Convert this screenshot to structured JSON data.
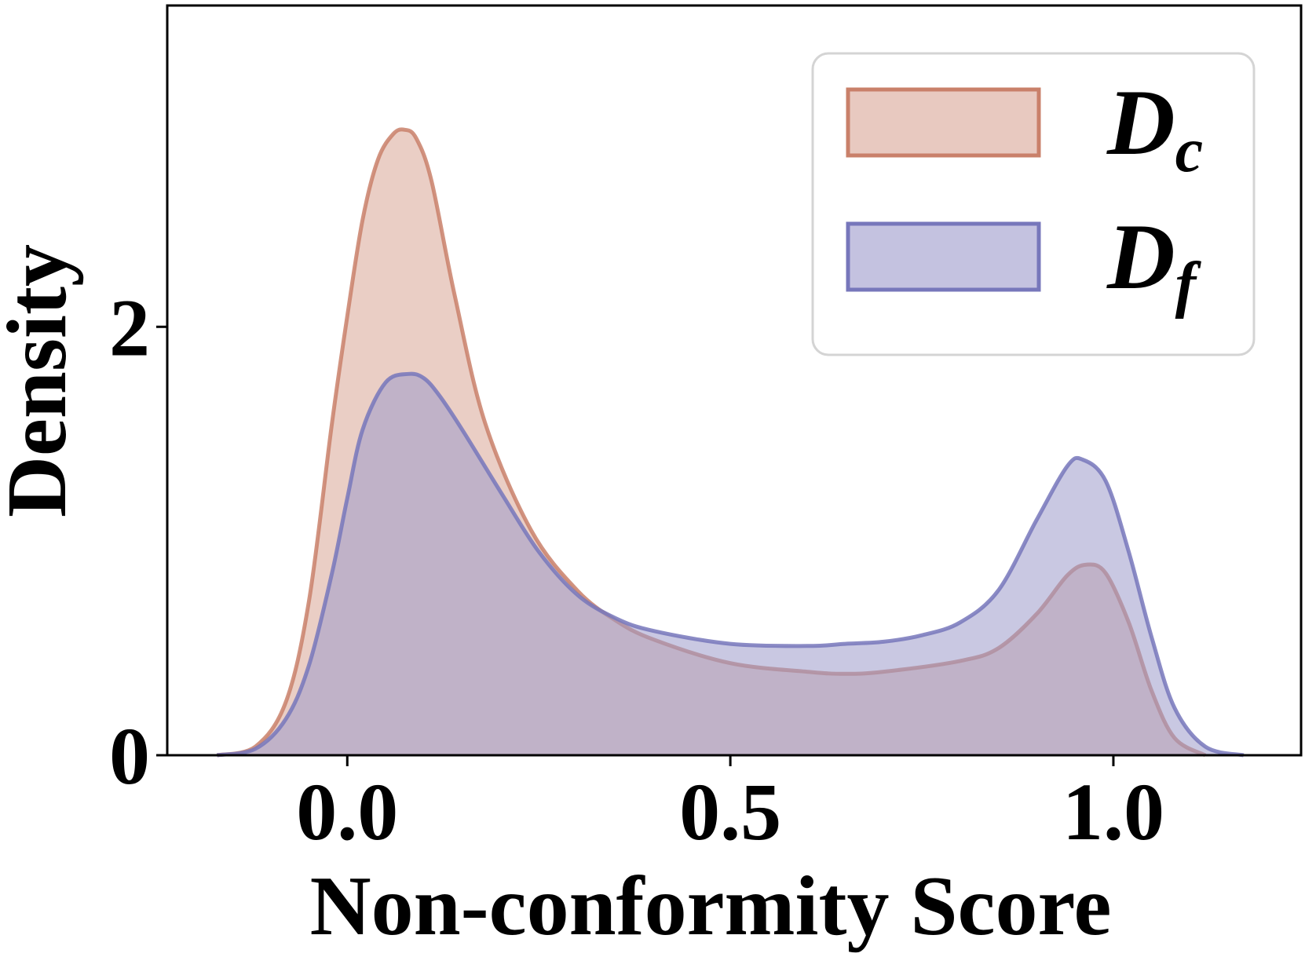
{
  "chart_data": {
    "type": "area",
    "xlabel": "Non-conformity Score",
    "ylabel": "Density",
    "xlim": [
      -0.235,
      1.245
    ],
    "ylim": [
      0,
      3.5
    ],
    "x_ticks": [
      {
        "value": 0.0,
        "label": "0.0"
      },
      {
        "value": 0.5,
        "label": "0.5"
      },
      {
        "value": 1.0,
        "label": "1.0"
      }
    ],
    "y_ticks": [
      {
        "value": 0,
        "label": "0"
      },
      {
        "value": 2,
        "label": "2"
      }
    ],
    "grid": false,
    "legend_position": "top-right",
    "series": [
      {
        "name": "D_c",
        "legend_main": "D",
        "legend_sub": "c",
        "color": "#c9806a",
        "fill": "#d8a596",
        "x": [
          -0.17,
          -0.12,
          -0.08,
          -0.05,
          -0.02,
          0.0,
          0.02,
          0.04,
          0.06,
          0.075,
          0.09,
          0.11,
          0.14,
          0.18,
          0.24,
          0.3,
          0.35,
          0.4,
          0.5,
          0.6,
          0.65,
          0.7,
          0.8,
          0.85,
          0.9,
          0.94,
          0.965,
          0.99,
          1.02,
          1.05,
          1.08,
          1.12
        ],
        "y": [
          0.0,
          0.04,
          0.25,
          0.72,
          1.55,
          2.05,
          2.5,
          2.78,
          2.9,
          2.92,
          2.88,
          2.68,
          2.15,
          1.55,
          1.05,
          0.77,
          0.63,
          0.54,
          0.43,
          0.39,
          0.38,
          0.39,
          0.44,
          0.5,
          0.66,
          0.84,
          0.89,
          0.85,
          0.62,
          0.3,
          0.08,
          0.0
        ]
      },
      {
        "name": "D_f",
        "legend_main": "D",
        "legend_sub": "f",
        "color": "#7777bb",
        "fill": "#9c9acb",
        "x": [
          -0.17,
          -0.12,
          -0.08,
          -0.05,
          -0.02,
          0.0,
          0.02,
          0.05,
          0.08,
          0.1,
          0.12,
          0.15,
          0.2,
          0.25,
          0.3,
          0.35,
          0.4,
          0.5,
          0.6,
          0.65,
          0.7,
          0.75,
          0.8,
          0.85,
          0.9,
          0.94,
          0.96,
          0.99,
          1.02,
          1.05,
          1.08,
          1.12,
          1.17
        ],
        "y": [
          0.0,
          0.03,
          0.17,
          0.42,
          0.85,
          1.2,
          1.52,
          1.74,
          1.78,
          1.76,
          1.68,
          1.52,
          1.23,
          0.95,
          0.75,
          0.64,
          0.58,
          0.52,
          0.51,
          0.52,
          0.53,
          0.56,
          0.62,
          0.77,
          1.1,
          1.35,
          1.38,
          1.28,
          0.95,
          0.55,
          0.22,
          0.04,
          0.0
        ]
      }
    ]
  }
}
